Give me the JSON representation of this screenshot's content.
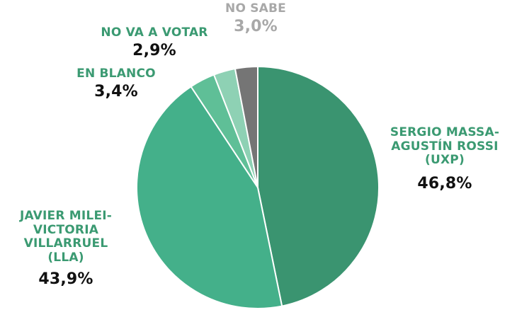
{
  "colors": {
    "massa": "#3a9470",
    "milei": "#44b08a",
    "blanco": "#5fbf97",
    "votar": "#8ed1b4",
    "nosabe": "#757575",
    "label_green": "#3b9a72",
    "label_gray": "#a8a8a8",
    "value_text": "#111111"
  },
  "chart_data": {
    "type": "pie",
    "slices": [
      {
        "key": "massa",
        "label_lines": [
          "SERGIO MASSA-",
          "AGUSTÍN ROSSI",
          "(UxP)"
        ],
        "value": 46.8,
        "value_label": "46,8%"
      },
      {
        "key": "milei",
        "label_lines": [
          "JAVIER MILEI-",
          "VICTORIA",
          "VILLARRUEL",
          "(LLA)"
        ],
        "value": 43.9,
        "value_label": "43,9%"
      },
      {
        "key": "blanco",
        "label_lines": [
          "EN BLANCO"
        ],
        "value": 3.4,
        "value_label": "3,4%"
      },
      {
        "key": "votar",
        "label_lines": [
          "NO VA A VOTAR"
        ],
        "value": 2.9,
        "value_label": "2,9%"
      },
      {
        "key": "nosabe",
        "label_lines": [
          "NO SABE"
        ],
        "value": 3.0,
        "value_label": "3,0%"
      }
    ]
  }
}
